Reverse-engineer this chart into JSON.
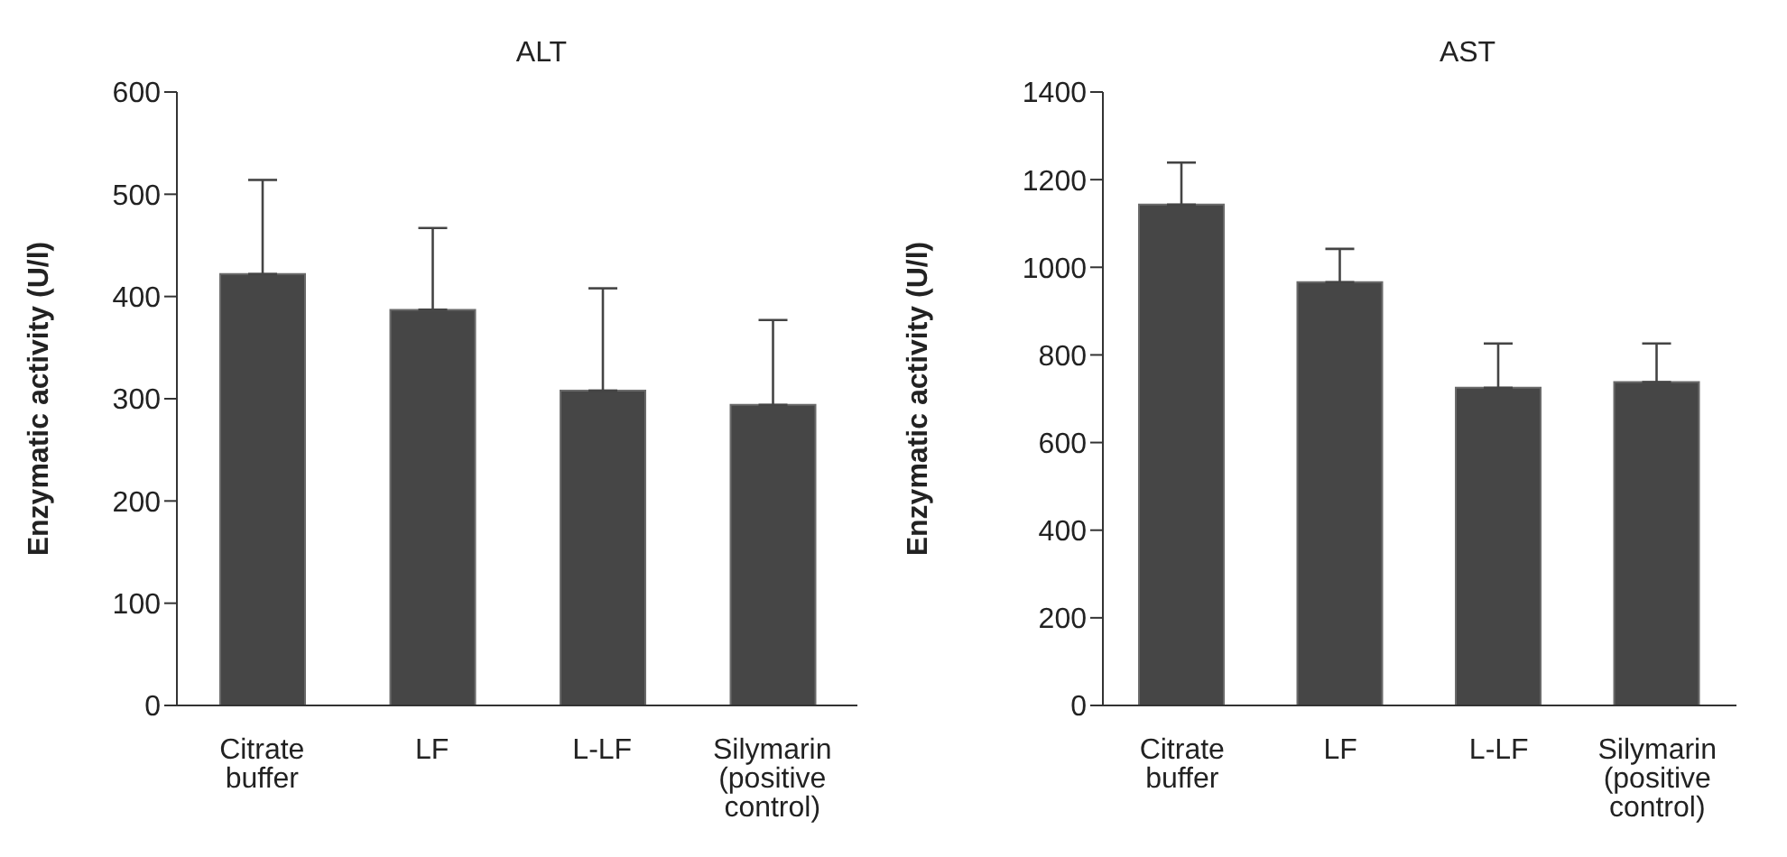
{
  "chart_data": [
    {
      "type": "bar",
      "title": "ALT",
      "ylabel": "Enzymatic activity (U/l)",
      "categories": [
        "Citrate buffer",
        "LF",
        "L-LF",
        "Silymarin (positive control)"
      ],
      "values": [
        422,
        387,
        308,
        294
      ],
      "errors": [
        [
          422,
          514
        ],
        [
          387,
          467
        ],
        [
          308,
          408
        ],
        [
          294,
          377
        ]
      ],
      "color": "#464646",
      "ylim": [
        0,
        600
      ],
      "yticks": [
        0,
        100,
        200,
        300,
        400,
        500,
        600
      ],
      "grid": false,
      "legend": false
    },
    {
      "type": "bar",
      "title": "AST",
      "ylabel": "Enzymatic activity (U/l)",
      "categories": [
        "Citrate buffer",
        "LF",
        "L-LF",
        "Silymarin (positive control)"
      ],
      "values": [
        1143,
        966,
        725,
        738
      ],
      "errors": [
        [
          1143,
          1239
        ],
        [
          966,
          1042
        ],
        [
          725,
          826
        ],
        [
          738,
          826
        ]
      ],
      "color": "#464646",
      "ylim": [
        0,
        1400
      ],
      "yticks": [
        0,
        200,
        400,
        600,
        800,
        1000,
        1200,
        1400
      ],
      "grid": false,
      "legend": false
    }
  ]
}
